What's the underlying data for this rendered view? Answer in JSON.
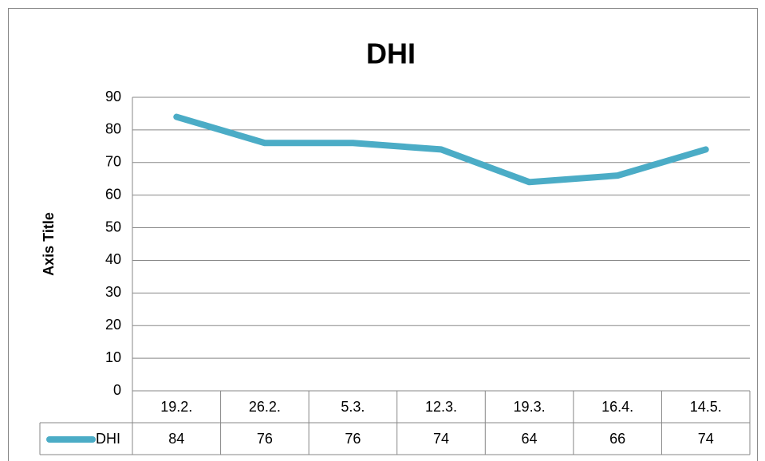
{
  "chart_data": {
    "type": "line",
    "title": "DHI",
    "y_label": "Axis Title",
    "categories": [
      "19.2.",
      "26.2.",
      "5.3.",
      "12.3.",
      "19.3.",
      "16.4.",
      "14.5."
    ],
    "series": [
      {
        "name": "DHI",
        "color": "#4bacc6",
        "values": [
          84,
          76,
          76,
          74,
          64,
          66,
          74
        ]
      }
    ],
    "ylim": [
      0,
      90
    ],
    "yticks": [
      0,
      10,
      20,
      30,
      40,
      50,
      60,
      70,
      80,
      90
    ],
    "grid": true,
    "data_table": true
  }
}
